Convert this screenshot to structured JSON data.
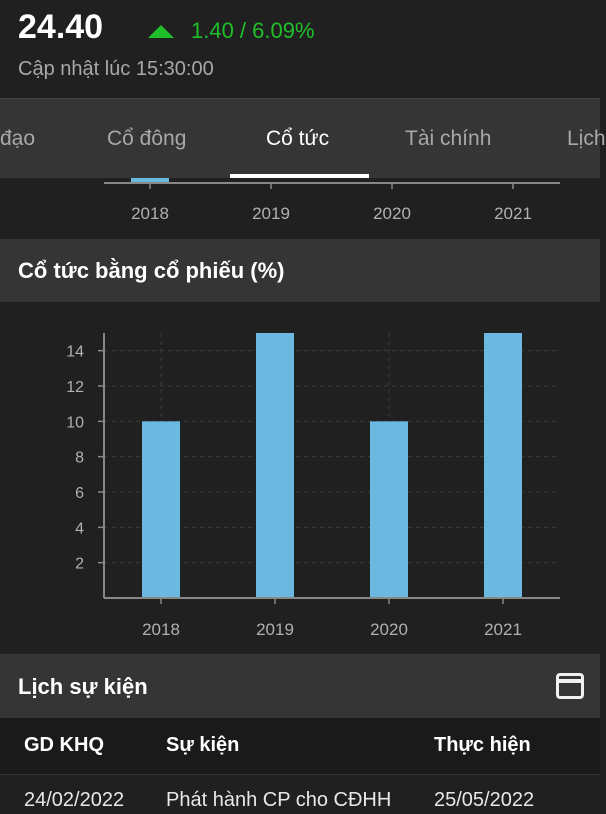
{
  "header": {
    "price": "24.40",
    "change": "1.40 / 6.09%",
    "updated": "Cập nhật lúc 15:30:00",
    "up_color": "#1fbf2a"
  },
  "tabs": [
    {
      "label": "đạo",
      "active": false
    },
    {
      "label": "Cổ đông",
      "active": false
    },
    {
      "label": "Cổ tức",
      "active": true
    },
    {
      "label": "Tài chính",
      "active": false
    },
    {
      "label": "Lịch",
      "active": false
    }
  ],
  "top_chart": {
    "categories": [
      "2018",
      "2019",
      "2020",
      "2021"
    ]
  },
  "stock_dividend": {
    "title": "Cổ tức bằng cổ phiếu (%)"
  },
  "chart_data": {
    "type": "bar",
    "title": "Cổ tức bằng cổ phiếu (%)",
    "categories": [
      "2018",
      "2019",
      "2020",
      "2021"
    ],
    "values": [
      10,
      15,
      10,
      15
    ],
    "ylim": [
      0,
      15
    ],
    "yticks": [
      2,
      4,
      6,
      8,
      10,
      12,
      14
    ],
    "grid": true,
    "bar_color": "#6bb8e0"
  },
  "events": {
    "title": "Lịch sự kiện",
    "calendar_icon": "calendar-icon",
    "columns": [
      "GD KHQ",
      "Sự kiện",
      "Thực hiện"
    ],
    "rows": [
      {
        "date": "24/02/2022",
        "event": "Phát hành CP cho CĐHH",
        "done": "25/05/2022"
      }
    ]
  }
}
